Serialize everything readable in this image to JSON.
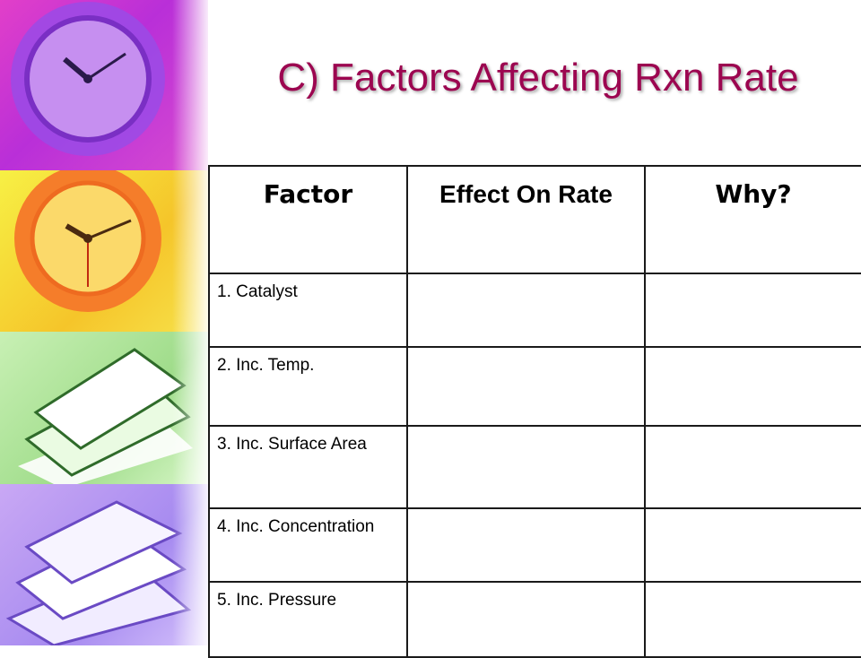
{
  "slide": {
    "title": "C) Factors Affecting Rxn Rate"
  },
  "table": {
    "headers": [
      "Factor",
      "Effect On Rate",
      "Why?"
    ],
    "rows": [
      {
        "factor": "1.  Catalyst",
        "effect": "",
        "why": ""
      },
      {
        "factor": "2.  Inc. Temp.",
        "effect": "",
        "why": ""
      },
      {
        "factor": "3.  Inc. Surface Area",
        "effect": "",
        "why": ""
      },
      {
        "factor": "4.  Inc. Concentration",
        "effect": "",
        "why": ""
      },
      {
        "factor": "5.  Inc. Pressure",
        "effect": "",
        "why": ""
      }
    ]
  },
  "decor": {
    "images": [
      "clock-icon",
      "clock-icon",
      "paper-stack-icon",
      "paper-stack-icon"
    ]
  },
  "colors": {
    "title": "#9c0650"
  }
}
